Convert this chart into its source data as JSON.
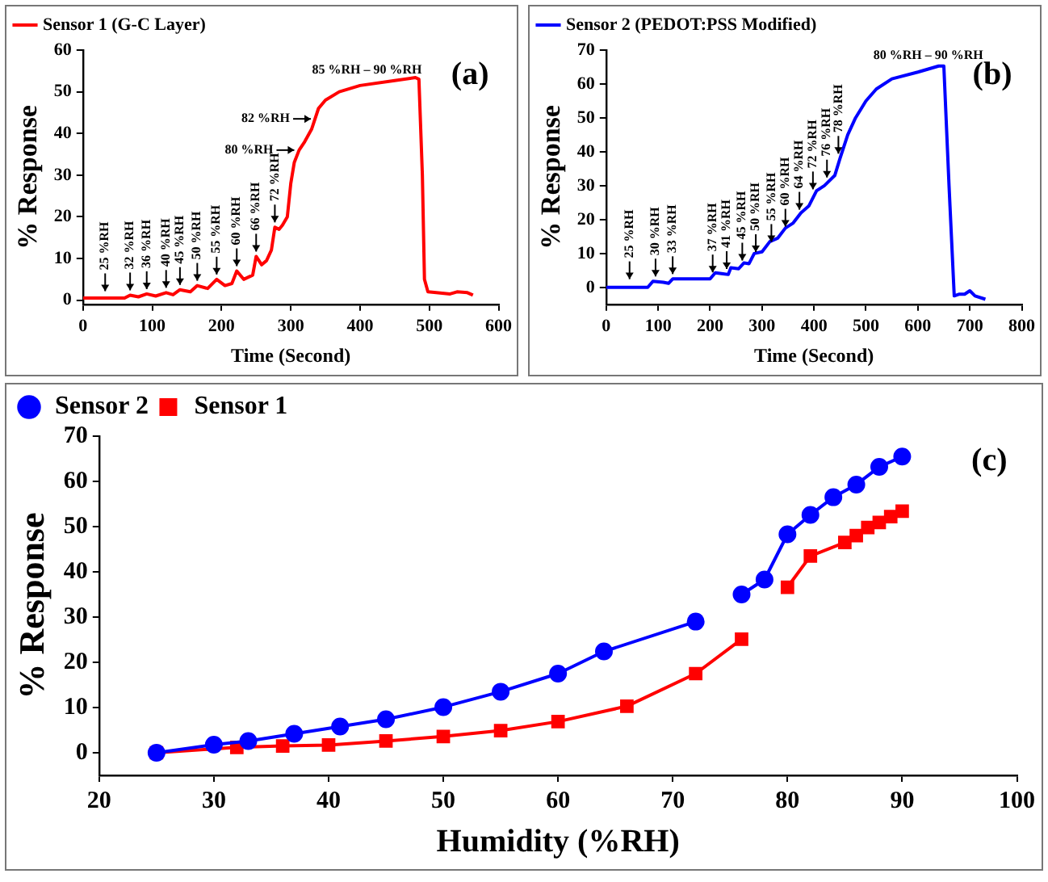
{
  "chart_data": [
    {
      "type": "line",
      "xlabel": "Time (Second)",
      "ylabel": "% Response",
      "xlim": [
        0,
        600
      ],
      "xticks": [
        0,
        100,
        200,
        300,
        400,
        500,
        600
      ],
      "ylim": [
        -1,
        60
      ],
      "yticks": [
        0,
        10,
        20,
        30,
        40,
        50,
        60
      ],
      "grid": false,
      "legend": "top left",
      "marker": "none",
      "line_style": "solid",
      "series": [
        {
          "name": "Sensor 1 (G-C Layer)",
          "color": "#ff0000",
          "x": [
            0,
            60,
            68,
            80,
            92,
            105,
            120,
            130,
            140,
            155,
            165,
            180,
            193,
            205,
            215,
            222,
            232,
            245,
            250,
            258,
            265,
            272,
            277,
            283,
            288,
            295,
            300,
            305,
            312,
            320,
            330,
            340,
            350,
            370,
            400,
            450,
            480,
            485,
            490,
            493,
            498,
            510,
            530,
            540,
            555,
            563
          ],
          "values": [
            0.5,
            0.5,
            1.2,
            0.8,
            1.5,
            1.0,
            1.8,
            1.3,
            2.5,
            2.0,
            3.5,
            2.8,
            5.0,
            3.5,
            4.0,
            7.0,
            5.0,
            6.0,
            10.5,
            8.5,
            9.5,
            12,
            17.5,
            17,
            18,
            20,
            28,
            33,
            36,
            38,
            41,
            46,
            48,
            50,
            51.5,
            52.7,
            53.4,
            53,
            30,
            5,
            2,
            1.8,
            1.5,
            2,
            1.8,
            1.2
          ]
        }
      ],
      "annotations": [
        "(a)",
        {
          "text": "25 %RH",
          "x": 32,
          "y": 1
        },
        {
          "text": "32 %RH",
          "x": 68,
          "y": 1.2
        },
        {
          "text": "36 %RH",
          "x": 92,
          "y": 1.5
        },
        {
          "text": "40 %RH",
          "x": 120,
          "y": 1.8
        },
        {
          "text": "45 %RH",
          "x": 140,
          "y": 2.5
        },
        {
          "text": "50 %RH",
          "x": 165,
          "y": 3.5
        },
        {
          "text": "55 %RH",
          "x": 193,
          "y": 5
        },
        {
          "text": "60 %RH",
          "x": 222,
          "y": 7
        },
        {
          "text": "66 %RH",
          "x": 250,
          "y": 10.5
        },
        {
          "text": "72 %RH",
          "x": 277,
          "y": 17.5
        },
        {
          "text": "80 %RH",
          "x": 312,
          "y": 36
        },
        {
          "text": "82 %RH",
          "x": 336,
          "y": 43.5
        },
        {
          "text": "85 %RH – 90 %RH",
          "x": 410,
          "y": 52
        }
      ]
    },
    {
      "type": "line",
      "xlabel": "Time (Second)",
      "ylabel": "% Response",
      "xlim": [
        0,
        800
      ],
      "xticks": [
        0,
        100,
        200,
        300,
        400,
        500,
        600,
        700,
        800
      ],
      "ylim": [
        -5,
        70
      ],
      "yticks": [
        0,
        10,
        20,
        30,
        40,
        50,
        60,
        70
      ],
      "grid": false,
      "legend": "top left",
      "marker": "none",
      "line_style": "solid",
      "series": [
        {
          "name": "Sensor 2 (PEDOT:PSS Modified)",
          "color": "#0000ff",
          "x": [
            0,
            80,
            90,
            110,
            120,
            128,
            150,
            200,
            210,
            225,
            235,
            240,
            255,
            265,
            275,
            285,
            300,
            315,
            330,
            345,
            360,
            375,
            390,
            405,
            420,
            440,
            450,
            465,
            480,
            500,
            520,
            550,
            600,
            640,
            650,
            660,
            670,
            680,
            690,
            700,
            710,
            730
          ],
          "values": [
            0,
            0,
            1.8,
            1.5,
            1.2,
            2.5,
            2.5,
            2.5,
            4.3,
            4,
            3.8,
            5.8,
            5.5,
            7.2,
            7,
            10,
            10.5,
            13.5,
            14.5,
            17.5,
            19,
            22,
            24,
            28.5,
            30,
            33,
            38,
            45,
            50,
            55,
            58.5,
            61.5,
            63.5,
            65.3,
            65.3,
            30,
            -2.5,
            -2,
            -2,
            -1,
            -2.5,
            -3.5
          ]
        }
      ],
      "annotations": [
        "(b)",
        {
          "text": "25 %RH",
          "x": 45,
          "y": 1
        },
        {
          "text": "30 %RH",
          "x": 95,
          "y": 1.8
        },
        {
          "text": "33 %RH",
          "x": 128,
          "y": 2.5
        },
        {
          "text": "37 %RH",
          "x": 205,
          "y": 3
        },
        {
          "text": "41 %RH",
          "x": 232,
          "y": 4
        },
        {
          "text": "45 %RH",
          "x": 262,
          "y": 6.5
        },
        {
          "text": "50 %RH",
          "x": 288,
          "y": 9
        },
        {
          "text": "55 %RH",
          "x": 318,
          "y": 12
        },
        {
          "text": "60 %RH",
          "x": 345,
          "y": 16.5
        },
        {
          "text": "64 %RH",
          "x": 372,
          "y": 21.5
        },
        {
          "text": "72 %RH",
          "x": 398,
          "y": 27.5
        },
        {
          "text": "76 %RH",
          "x": 425,
          "y": 31
        },
        {
          "text": "78 %RH",
          "x": 447,
          "y": 38
        },
        {
          "text": "80 %RH – 90 %RH",
          "x": 620,
          "y": 64.5
        }
      ]
    },
    {
      "type": "line",
      "xlabel": "Humidity (%RH)",
      "ylabel": "% Response",
      "xlim": [
        20,
        100
      ],
      "xticks": [
        20,
        30,
        40,
        50,
        60,
        70,
        80,
        90,
        100
      ],
      "ylim": [
        -5,
        70
      ],
      "yticks": [
        0,
        10,
        20,
        30,
        40,
        50,
        60,
        70
      ],
      "grid": false,
      "legend": "top left",
      "line_style": "solid",
      "series": [
        {
          "name": "Sensor 2",
          "color": "#0000ff",
          "marker": "circle",
          "x": [
            25,
            30,
            33,
            37,
            41,
            45,
            50,
            55,
            60,
            64,
            72,
            null,
            76,
            78,
            80,
            82,
            84,
            86,
            88,
            90
          ],
          "values": [
            0,
            1.8,
            2.6,
            4.2,
            5.8,
            7.4,
            10.1,
            13.5,
            17.5,
            22.4,
            29,
            null,
            35,
            38.3,
            48.3,
            52.6,
            56.5,
            59.3,
            63.2,
            65.5
          ]
        },
        {
          "name": "Sensor 1",
          "color": "#ff0000",
          "marker": "square",
          "x": [
            25,
            32,
            36,
            40,
            45,
            50,
            55,
            60,
            66,
            72,
            76,
            null,
            80,
            82,
            85,
            86,
            87,
            88,
            89,
            90
          ],
          "values": [
            0,
            1.2,
            1.5,
            1.7,
            2.6,
            3.6,
            4.9,
            6.9,
            10.3,
            17.5,
            25.1,
            null,
            36.6,
            43.5,
            46.5,
            48,
            49.8,
            50.9,
            52.2,
            53.4
          ]
        }
      ],
      "annotations": [
        "(c)"
      ]
    }
  ]
}
